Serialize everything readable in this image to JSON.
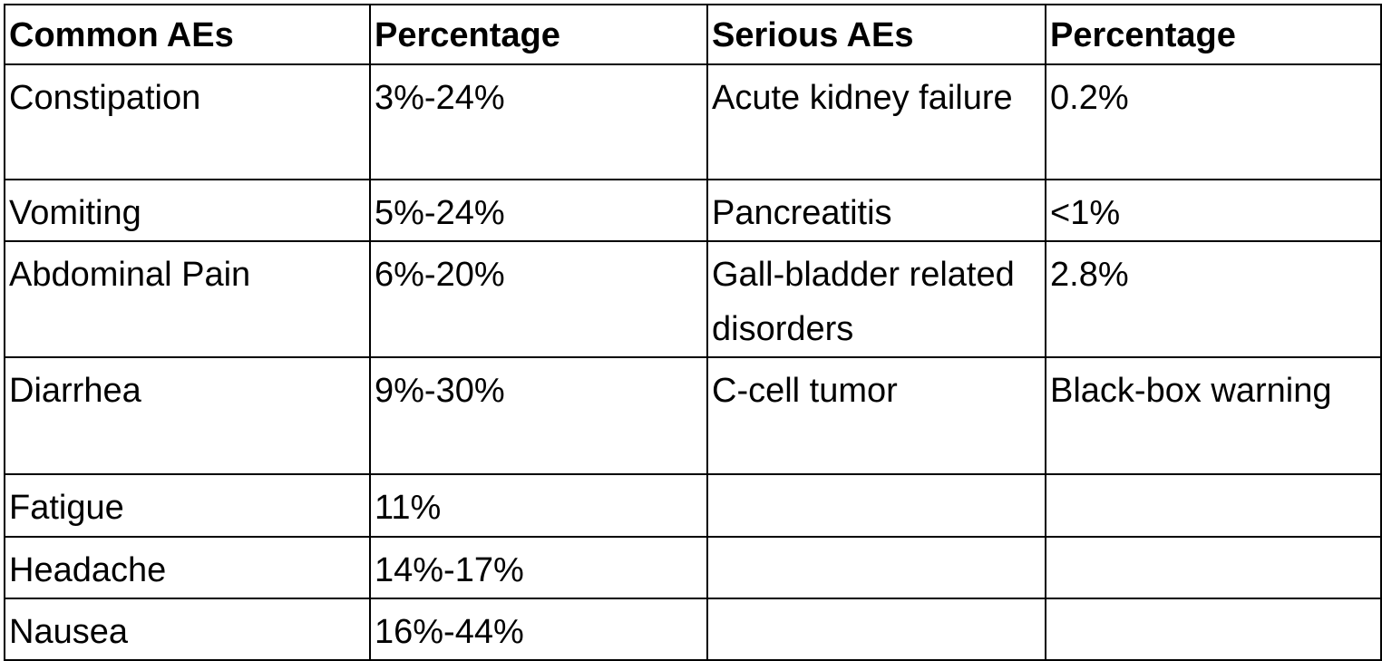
{
  "table": {
    "header": [
      "Common AEs",
      "Percentage",
      "Serious AEs",
      "Percentage"
    ],
    "rows": [
      [
        "Constipation",
        "3%-24%",
        "Acute kidney failure",
        "0.2%"
      ],
      [
        "Vomiting",
        "5%-24%",
        "Pancreatitis",
        "<1%"
      ],
      [
        "Abdominal Pain",
        "6%-20%",
        "Gall-bladder related disorders",
        "2.8%"
      ],
      [
        "Diarrhea",
        "9%-30%",
        "C-cell tumor",
        "Black-box warning"
      ],
      [
        "Fatigue",
        "11%"
      ],
      [
        "Headache",
        "14%-17%"
      ],
      [
        "Nausea",
        "16%-44%"
      ]
    ]
  }
}
